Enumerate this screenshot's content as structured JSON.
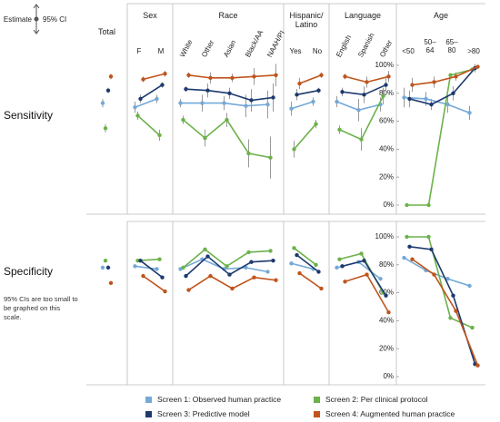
{
  "chart_data": {
    "type": "line",
    "ylim": [
      0,
      100
    ],
    "yticks": [
      {
        "value": 0,
        "label": "0%"
      },
      {
        "value": 20,
        "label": "20%"
      },
      {
        "value": 40,
        "label": "40%"
      },
      {
        "value": 60,
        "label": "60%"
      },
      {
        "value": 80,
        "label": "80%"
      },
      {
        "value": 100,
        "label": "100%"
      }
    ],
    "key": {
      "estimate": "Estimate",
      "ci": "95% CI"
    },
    "groups": [
      {
        "name": "Total",
        "categories": [
          null
        ],
        "rotated": false
      },
      {
        "name": "Sex",
        "categories": [
          "F",
          "M"
        ],
        "rotated": false
      },
      {
        "name": "Race",
        "categories": [
          "White",
          "Other",
          "Asian",
          "Black/AA",
          "NAAH/PI"
        ],
        "rotated": true
      },
      {
        "name": "Hispanic/\nLatino",
        "categories": [
          "Yes",
          "No"
        ],
        "rotated": false
      },
      {
        "name": "Language",
        "categories": [
          "English",
          "Spanish",
          "Other"
        ],
        "rotated": true
      },
      {
        "name": "Age",
        "categories": [
          "<50",
          "50–\n64",
          "65–\n80",
          ">80"
        ],
        "rotated": false
      }
    ],
    "series": [
      {
        "name": "Screen 1: Observed human practice",
        "color": "#74a9d8"
      },
      {
        "name": "Screen 2: Per clinical protocol",
        "color": "#6bb24a"
      },
      {
        "name": "Screen 3: Predictive model",
        "color": "#1d3a6e"
      },
      {
        "name": "Screen 4: Augmented human practice",
        "color": "#c0541c"
      }
    ],
    "panels": [
      {
        "title": "Sensitivity",
        "series": [
          {
            "values": [
              73,
              70,
              76,
              73,
              73,
              73,
              71,
              72,
              69,
              74,
              74,
              68,
              72,
              77,
              76,
              72,
              66
            ],
            "errors": [
              3,
              4,
              3,
              3,
              6,
              5,
              8,
              10,
              5,
              3,
              4,
              8,
              5,
              7,
              5,
              6,
              5
            ]
          },
          {
            "values": [
              55,
              64,
              50,
              61,
              48,
              61,
              37,
              34,
              40,
              58,
              54,
              47,
              78,
              0,
              0,
              93,
              97
            ],
            "errors": [
              3,
              3,
              4,
              3,
              6,
              5,
              10,
              15,
              6,
              3,
              3,
              8,
              6,
              0,
              0,
              0,
              0
            ]
          },
          {
            "values": [
              82,
              76,
              86,
              83,
              82,
              80,
              75,
              77,
              79,
              82,
              81,
              79,
              86,
              76,
              72,
              80,
              98
            ],
            "errors": [
              2,
              3,
              2,
              2,
              5,
              4,
              8,
              10,
              4,
              2,
              3,
              6,
              5,
              6,
              4,
              5,
              3
            ]
          },
          {
            "values": [
              92,
              90,
              94,
              93,
              91,
              91,
              92,
              93,
              87,
              93,
              92,
              88,
              92,
              86,
              88,
              92,
              99
            ],
            "errors": [
              2,
              2,
              2,
              2,
              4,
              3,
              6,
              8,
              4,
              2,
              2,
              4,
              4,
              5,
              4,
              3,
              1
            ]
          }
        ]
      },
      {
        "title": "Specificity",
        "note": "95% CIs are too small to be graphed on this scale.",
        "series": [
          {
            "values": [
              78,
              79,
              77,
              77,
              84,
              77,
              78,
              75,
              81,
              77,
              78,
              82,
              70,
              85,
              76,
              70,
              65
            ]
          },
          {
            "values": [
              83,
              83,
              84,
              78,
              91,
              79,
              89,
              90,
              92,
              80,
              84,
              88,
              60,
              100,
              100,
              42,
              35
            ]
          },
          {
            "values": [
              78,
              83,
              71,
              72,
              86,
              73,
              82,
              83,
              87,
              75,
              79,
              83,
              58,
              93,
              91,
              58,
              9
            ]
          },
          {
            "values": [
              67,
              72,
              61,
              62,
              72,
              63,
              71,
              69,
              74,
              63,
              68,
              73,
              46,
              84,
              73,
              47,
              8
            ]
          }
        ]
      }
    ]
  }
}
